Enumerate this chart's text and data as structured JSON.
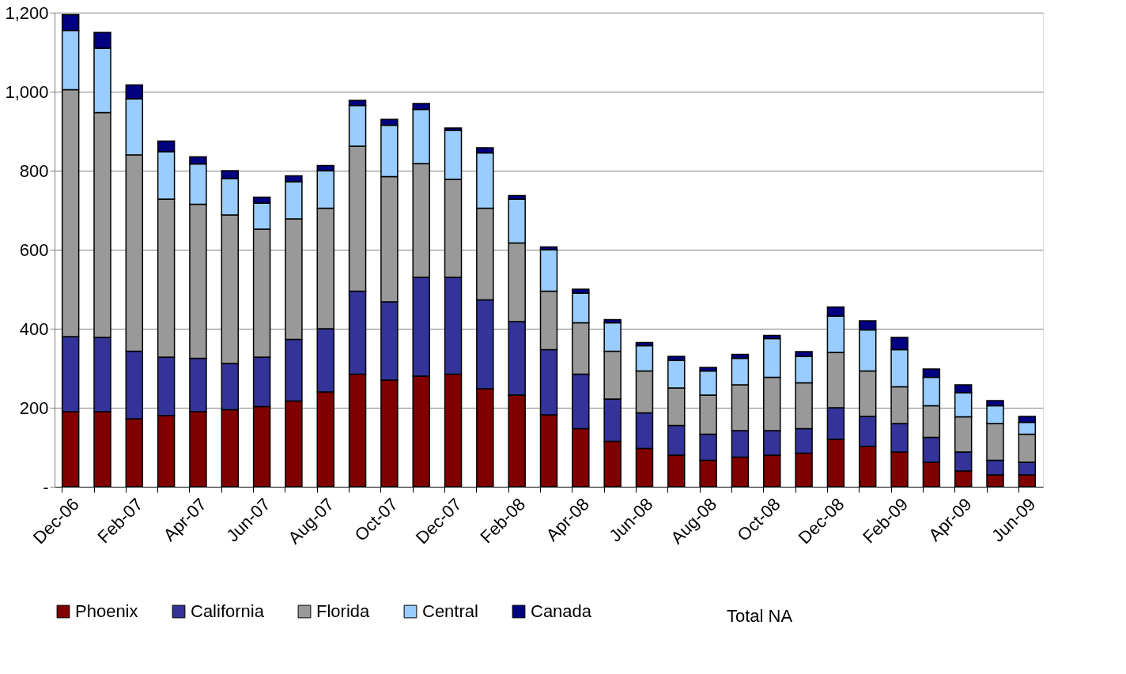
{
  "chart_data": {
    "type": "bar",
    "stacked": true,
    "categories": [
      "Dec-06",
      null,
      "Feb-07",
      null,
      "Apr-07",
      null,
      "Jun-07",
      null,
      "Aug-07",
      null,
      "Oct-07",
      null,
      "Dec-07",
      null,
      "Feb-08",
      null,
      "Apr-08",
      null,
      "Jun-08",
      null,
      "Aug-08",
      null,
      "Oct-08",
      null,
      "Dec-08",
      null,
      "Feb-09",
      null,
      "Apr-09",
      null,
      "Jun-09"
    ],
    "series": [
      {
        "name": "Phoenix",
        "color": "#800000",
        "values": [
          190,
          190,
          172,
          180,
          190,
          195,
          203,
          217,
          240,
          285,
          270,
          280,
          285,
          248,
          232,
          182,
          147,
          115,
          97,
          80,
          67,
          75,
          80,
          85,
          120,
          102,
          88,
          62,
          40,
          30,
          30
        ]
      },
      {
        "name": "California",
        "color": "#333399",
        "values": [
          190,
          188,
          171,
          148,
          135,
          117,
          125,
          156,
          160,
          210,
          198,
          250,
          245,
          225,
          186,
          165,
          138,
          107,
          90,
          75,
          66,
          67,
          62,
          62,
          80,
          76,
          72,
          63,
          48,
          37,
          32
        ]
      },
      {
        "name": "Florida",
        "color": "#999999",
        "values": [
          625,
          569,
          497,
          400,
          390,
          376,
          324,
          305,
          305,
          367,
          317,
          288,
          248,
          232,
          199,
          148,
          130,
          121,
          106,
          95,
          99,
          116,
          135,
          116,
          140,
          115,
          93,
          80,
          89,
          93,
          71
        ]
      },
      {
        "name": "Central",
        "color": "#99ccff",
        "values": [
          150,
          163,
          142,
          120,
          102,
          92,
          66,
          94,
          95,
          103,
          130,
          137,
          124,
          140,
          111,
          105,
          75,
          72,
          64,
          70,
          61,
          67,
          98,
          67,
          92,
          104,
          94,
          72,
          61,
          45,
          30
        ]
      },
      {
        "name": "Canada",
        "color": "#000080",
        "values": [
          40,
          40,
          35,
          27,
          18,
          20,
          15,
          15,
          13,
          13,
          15,
          15,
          6,
          13,
          9,
          7,
          10,
          8,
          8,
          10,
          9,
          10,
          8,
          12,
          23,
          23,
          31,
          21,
          20,
          13,
          15
        ]
      }
    ],
    "ylim": [
      0,
      1200
    ],
    "yticks": [
      {
        "value": 0,
        "label": "-"
      },
      {
        "value": 200,
        "label": "200"
      },
      {
        "value": 400,
        "label": "400"
      },
      {
        "value": 600,
        "label": "600"
      },
      {
        "value": 800,
        "label": "800"
      },
      {
        "value": 1000,
        "label": "1,000"
      },
      {
        "value": 1200,
        "label": "1,200"
      }
    ],
    "grid": "y",
    "legend": "bottom",
    "annotations": [
      "Total NA"
    ]
  }
}
